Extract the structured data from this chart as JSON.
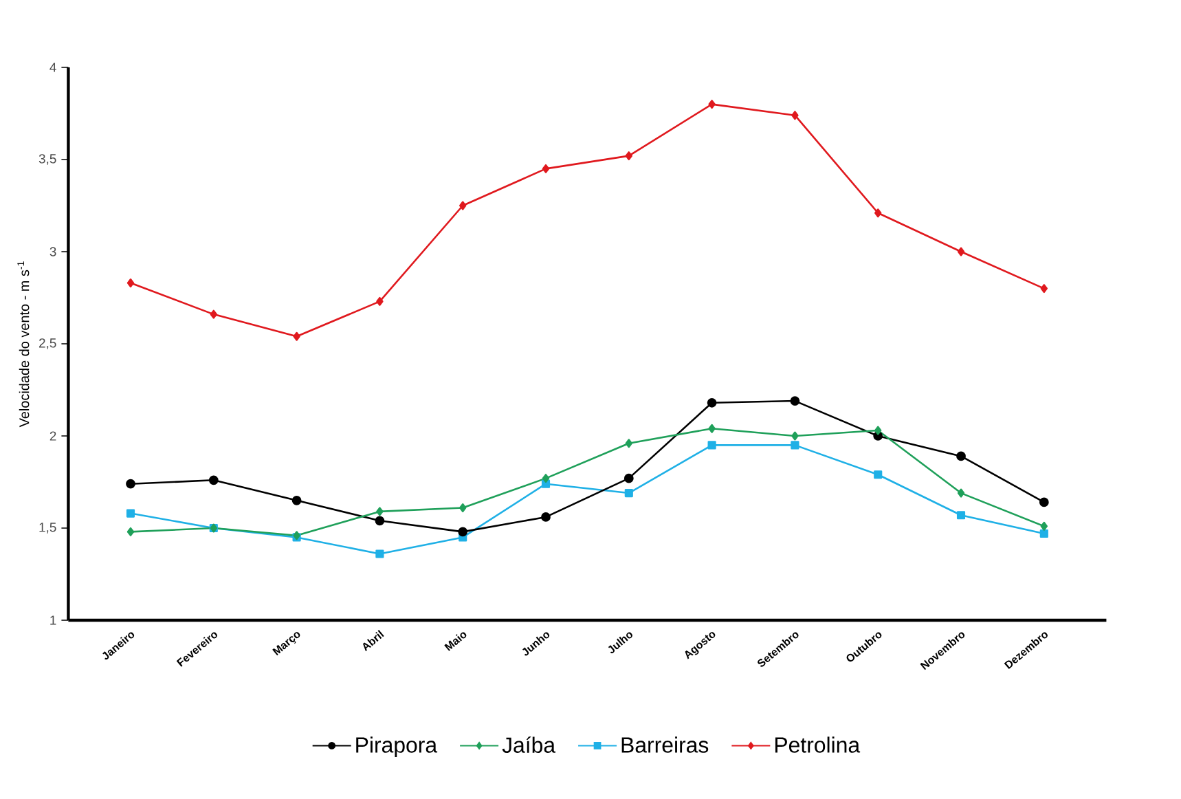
{
  "chart_data": {
    "type": "line",
    "ylabel": "Velocidade do vento - m s$^{-1}$",
    "categories": [
      "Janeiro",
      "Fevereiro",
      "Março",
      "Abril",
      "Maio",
      "Junho",
      "Julho",
      "Agosto",
      "Setembro",
      "Outubro",
      "Novembro",
      "Dezembro"
    ],
    "series": [
      {
        "name": "Pirapora",
        "color": "#000000",
        "marker": "circle",
        "values": [
          1.74,
          1.76,
          1.65,
          1.54,
          1.48,
          1.56,
          1.77,
          2.18,
          2.19,
          2.0,
          1.89,
          1.64
        ]
      },
      {
        "name": "Jaíba",
        "color": "#1fa05a",
        "marker": "diamond",
        "values": [
          1.48,
          1.5,
          1.46,
          1.59,
          1.61,
          1.77,
          1.96,
          2.04,
          2.0,
          2.03,
          1.69,
          1.51
        ]
      },
      {
        "name": "Barreiras",
        "color": "#1fb0e6",
        "marker": "square",
        "values": [
          1.58,
          1.5,
          1.45,
          1.36,
          1.45,
          1.74,
          1.69,
          1.95,
          1.95,
          1.79,
          1.57,
          1.47
        ]
      },
      {
        "name": "Petrolina",
        "color": "#e0191e",
        "marker": "diamond",
        "values": [
          2.83,
          2.66,
          2.54,
          2.73,
          3.25,
          3.45,
          3.52,
          3.8,
          3.74,
          3.21,
          3.0,
          2.8
        ]
      }
    ],
    "ylim": [
      1,
      4
    ],
    "yticks": [
      1,
      {
        "value": 1.5,
        "label": "1,5"
      },
      2,
      {
        "value": 2.5,
        "label": "2,5"
      },
      3,
      {
        "value": 3.5,
        "label": "3,5"
      },
      4
    ],
    "grid": false,
    "legend": "bottom",
    "line_style": "solid"
  }
}
